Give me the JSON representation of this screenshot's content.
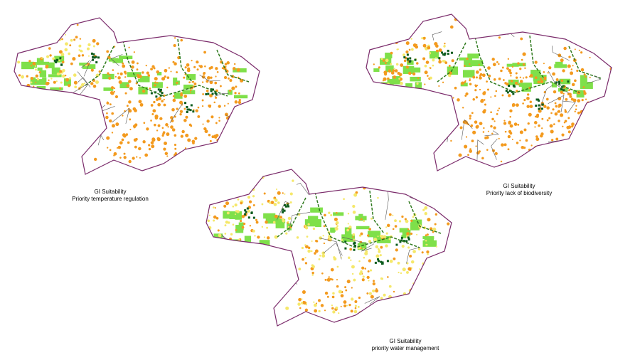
{
  "colors": {
    "boundary": "#7a2a6a",
    "district_lines": "#555555",
    "orange": "#f39a1e",
    "yellow": "#f5e86a",
    "light_green": "#7fe04a",
    "dark_green": "#0d5c1e",
    "rivers": "#2f7a1e"
  },
  "maps": [
    {
      "title": "GI Suitability",
      "subtitle": "Priority temperature regulation",
      "dominant": "orange"
    },
    {
      "title": "GI Suitability",
      "subtitle": "Priority lack of biodiversity",
      "dominant": "orange"
    },
    {
      "title": "GI Suitability",
      "subtitle": "priority water management",
      "dominant": "yellow"
    }
  ]
}
